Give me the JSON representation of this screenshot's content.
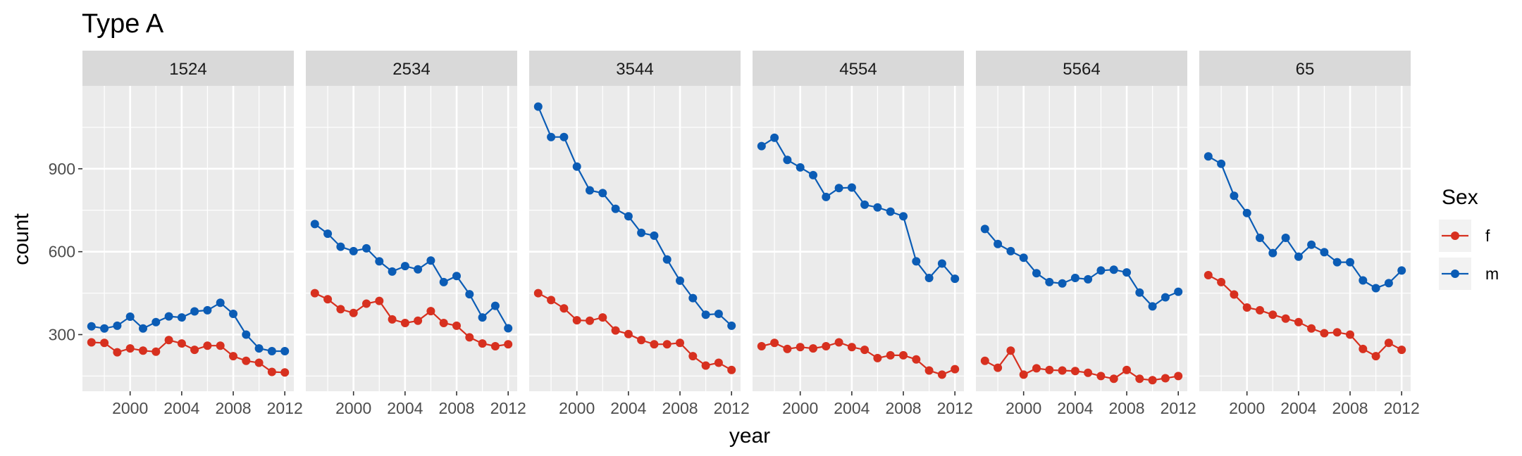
{
  "chart_data": {
    "type": "line",
    "title": "Type A",
    "xlabel": "year",
    "ylabel": "count",
    "xlim": [
      1996.3,
      2012.7
    ],
    "ylim": [
      95,
      1200
    ],
    "x_ticks": [
      2000,
      2004,
      2008,
      2012
    ],
    "y_ticks": [
      300,
      600,
      900
    ],
    "grid": true,
    "legend": {
      "title": "Sex",
      "position": "right",
      "entries": [
        {
          "name": "f",
          "color": "#D7301F"
        },
        {
          "name": "m",
          "color": "#0B5CB5"
        }
      ]
    },
    "years": [
      1997,
      1998,
      1999,
      2000,
      2001,
      2002,
      2003,
      2004,
      2005,
      2006,
      2007,
      2008,
      2009,
      2010,
      2011,
      2012
    ],
    "panels": [
      {
        "label": "1524",
        "series": [
          {
            "name": "f",
            "values": [
              272,
              270,
              236,
              250,
              242,
              238,
              280,
              268,
              245,
              260,
              260,
              222,
              205,
              198,
              165,
              163
            ]
          },
          {
            "name": "m",
            "values": [
              330,
              322,
              332,
              365,
              322,
              345,
              366,
              362,
              384,
              388,
              415,
              375,
              300,
              250,
              240,
              240
            ]
          }
        ]
      },
      {
        "label": "2534",
        "series": [
          {
            "name": "f",
            "values": [
              450,
              428,
              392,
              378,
              412,
              422,
              355,
              342,
              350,
              385,
              342,
              332,
              290,
              268,
              258,
              265
            ]
          },
          {
            "name": "m",
            "values": [
              700,
              665,
              618,
              602,
              612,
              565,
              528,
              548,
              536,
              568,
              490,
              512,
              446,
              362,
              404,
              323
            ]
          }
        ]
      },
      {
        "label": "3544",
        "series": [
          {
            "name": "f",
            "values": [
              450,
              425,
              395,
              352,
              350,
              362,
              315,
              302,
              280,
              265,
              265,
              270,
              222,
              188,
              198,
              172
            ]
          },
          {
            "name": "m",
            "values": [
              1125,
              1015,
              1015,
              908,
              822,
              812,
              755,
              728,
              668,
              658,
              572,
              495,
              432,
              372,
              375,
              332
            ]
          }
        ]
      },
      {
        "label": "4554",
        "series": [
          {
            "name": "f",
            "values": [
              258,
              270,
              248,
              255,
              250,
              258,
              272,
              255,
              245,
              215,
              225,
              225,
              210,
              170,
              155,
              175
            ]
          },
          {
            "name": "m",
            "values": [
              982,
              1012,
              932,
              905,
              877,
              798,
              830,
              832,
              770,
              760,
              745,
              728,
              565,
              505,
              557,
              502
            ]
          }
        ]
      },
      {
        "label": "5564",
        "series": [
          {
            "name": "f",
            "values": [
              205,
              180,
              242,
              155,
              178,
              172,
              170,
              168,
              162,
              150,
              140,
              172,
              140,
              135,
              142,
              150
            ]
          },
          {
            "name": "m",
            "values": [
              682,
              628,
              602,
              578,
              522,
              490,
              485,
              505,
              500,
              532,
              535,
              525,
              452,
              402,
              435,
              455
            ]
          }
        ]
      },
      {
        "label": "65",
        "series": [
          {
            "name": "f",
            "values": [
              515,
              490,
              445,
              398,
              388,
              372,
              358,
              345,
              322,
              305,
              308,
              300,
              248,
              222,
              270,
              245
            ]
          },
          {
            "name": "m",
            "values": [
              945,
              918,
              802,
              740,
              650,
              595,
              650,
              582,
              625,
              598,
              562,
              562,
              496,
              468,
              486,
              532
            ]
          }
        ]
      }
    ]
  }
}
